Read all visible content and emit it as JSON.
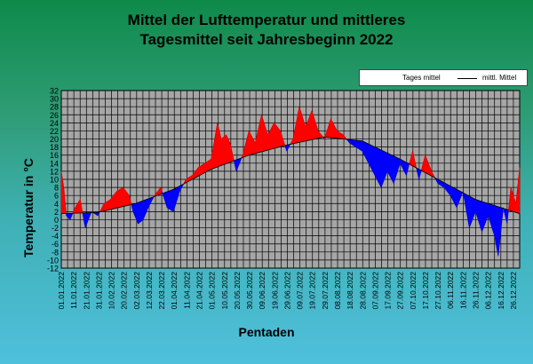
{
  "title_line1": "Mittel der Lufttemperatur und mittleres",
  "title_line2": "Tagesmittel seit Jahresbeginn 2022",
  "colors": {
    "above": "#ff0000",
    "below": "#0000ff",
    "plot_bg": "#a6a6a6",
    "grid": "#000000"
  },
  "chart_data": {
    "type": "line",
    "title": "Mittel der Lufttemperatur und mittleres Tagesmittel seit Jahresbeginn 2022",
    "xlabel": "Pentaden",
    "ylabel": "Temperatur in °C",
    "ylim": [
      -12,
      32
    ],
    "y_ticks": [
      -12,
      -10,
      -8,
      -6,
      -4,
      -2,
      0,
      2,
      4,
      6,
      8,
      10,
      12,
      14,
      16,
      18,
      20,
      22,
      24,
      26,
      28,
      30,
      32
    ],
    "x_tick_labels": [
      "01.01.2022",
      "11.01.2022",
      "21.01.2022",
      "31.01.2022",
      "10.02.2022",
      "20.02.2022",
      "02.03.2022",
      "12.03.2022",
      "22.03.2022",
      "01.04.2022",
      "11.04.2022",
      "21.04.2022",
      "01.05.2022",
      "10.05.2022",
      "20.05.2022",
      "30.05.2022",
      "09.06.2022",
      "19.06.2022",
      "29.06.2022",
      "09.07.2022",
      "19.07.2022",
      "29.07.2022",
      "08.08.2022",
      "18.08.2022",
      "28.08.2022",
      "07.09.2022",
      "17.09.2022",
      "27.09.2022",
      "07.10.2022",
      "17.10.2022",
      "27.10.2022",
      "06.11.2022",
      "16.11.2022",
      "26.11.2022",
      "06.12.2022",
      "16.12.2022",
      "26.12.2022"
    ],
    "legend": [
      "Tages mittel",
      "mittl. Mittel"
    ],
    "legend_position": "top-right",
    "grid": true,
    "mean_series": {
      "name": "mittl. Mittel",
      "days": [
        1,
        30,
        60,
        90,
        120,
        150,
        180,
        210,
        240,
        270,
        300,
        330,
        360,
        365
      ],
      "values": [
        1.5,
        1.8,
        4.0,
        7.5,
        12.5,
        16.0,
        18.5,
        20.5,
        19.5,
        15.0,
        10.0,
        5.0,
        2.0,
        1.5
      ]
    },
    "daily_series": {
      "name": "Tages mittel",
      "days": [
        1,
        3,
        5,
        8,
        12,
        16,
        20,
        25,
        30,
        35,
        40,
        45,
        50,
        55,
        58,
        62,
        66,
        70,
        75,
        80,
        85,
        90,
        95,
        100,
        105,
        110,
        115,
        120,
        125,
        128,
        132,
        135,
        140,
        145,
        150,
        155,
        160,
        165,
        170,
        175,
        180,
        185,
        190,
        195,
        200,
        205,
        210,
        215,
        220,
        225,
        230,
        235,
        240,
        245,
        250,
        255,
        260,
        265,
        270,
        275,
        280,
        285,
        290,
        295,
        300,
        305,
        310,
        315,
        320,
        325,
        330,
        335,
        340,
        345,
        348,
        352,
        355,
        358,
        362,
        365
      ],
      "values": [
        12,
        8,
        1,
        0,
        3,
        5,
        -2,
        2,
        1,
        4,
        5,
        7,
        8,
        6,
        2,
        -1,
        0,
        3,
        6,
        8,
        3,
        2,
        7,
        10,
        11,
        13,
        14,
        15,
        24,
        20,
        21,
        19,
        12,
        16,
        22,
        19,
        26,
        21,
        24,
        22,
        17,
        20,
        28,
        23,
        27,
        22,
        20,
        25,
        22,
        21,
        19,
        18,
        17,
        14,
        11,
        8,
        12,
        9,
        14,
        11,
        17,
        10,
        16,
        12,
        9,
        8,
        6,
        3,
        7,
        -2,
        2,
        -3,
        1,
        -4,
        -9,
        3,
        -1,
        8,
        4,
        13
      ]
    }
  }
}
